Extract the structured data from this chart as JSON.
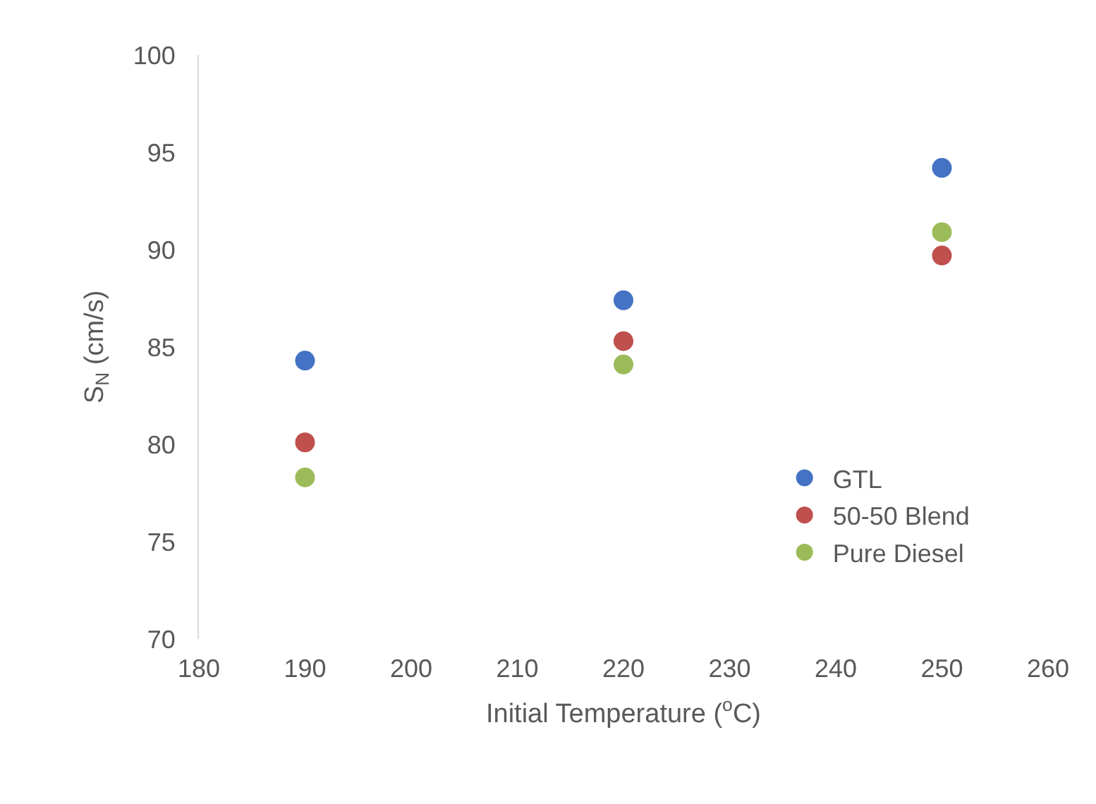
{
  "chart_data": {
    "type": "scatter",
    "xlabel": "Initial Temperature ($^{o}$C)",
    "ylabel": "S$_{N}$ (cm/s)",
    "x": [
      190,
      220,
      250
    ],
    "series": [
      {
        "name": "GTL",
        "color": "#4472c4",
        "values": [
          84.3,
          87.4,
          94.2
        ]
      },
      {
        "name": "50-50 Blend",
        "color": "#c0504d",
        "values": [
          80.1,
          85.3,
          89.7
        ]
      },
      {
        "name": "Pure Diesel",
        "color": "#9bbb59",
        "values": [
          78.3,
          84.1,
          90.9
        ]
      }
    ],
    "xlim": [
      180,
      260
    ],
    "xticks": [
      180,
      190,
      200,
      210,
      220,
      230,
      240,
      250,
      260
    ],
    "ylim": [
      70,
      100
    ],
    "yticks": [
      70,
      75,
      80,
      85,
      90,
      95,
      100
    ],
    "grid": false,
    "legend": "bottom right",
    "marker": "circle"
  }
}
